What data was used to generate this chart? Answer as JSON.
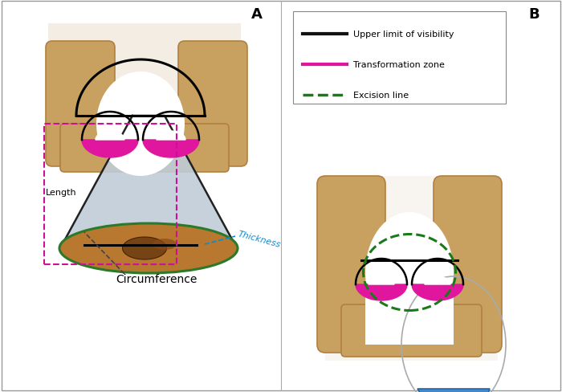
{
  "bg_color": "#ffffff",
  "panel_A_label": "A",
  "panel_B_label": "B",
  "legend_items": [
    {
      "label": "Upper limit of visibility",
      "color": "#111111",
      "linestyle": "solid"
    },
    {
      "label": "Transformation zone",
      "color": "#e0169e",
      "linestyle": "solid"
    },
    {
      "label": "Excision line",
      "color": "#1a7a1a",
      "linestyle": "dashed"
    }
  ],
  "text_length": "Length",
  "text_thickness": "Thickness",
  "text_circumference": "Circumference",
  "cervix_tan": "#c8a060",
  "cervix_tan2": "#d4b070",
  "cervix_shadow": "#b08040",
  "cone_gray": "#c0ccd8",
  "cone_base_brown": "#b87830",
  "cone_rim_green": "#2a7a2a",
  "pink_color": "#e0169e",
  "dashed_box_color": "#cc1099",
  "thickness_color": "#1188cc",
  "loop_gray": "#aaaaaa",
  "loop_blue": "#4488cc",
  "loop_blue2": "#2266aa",
  "white_bg": "#f0f0f0"
}
